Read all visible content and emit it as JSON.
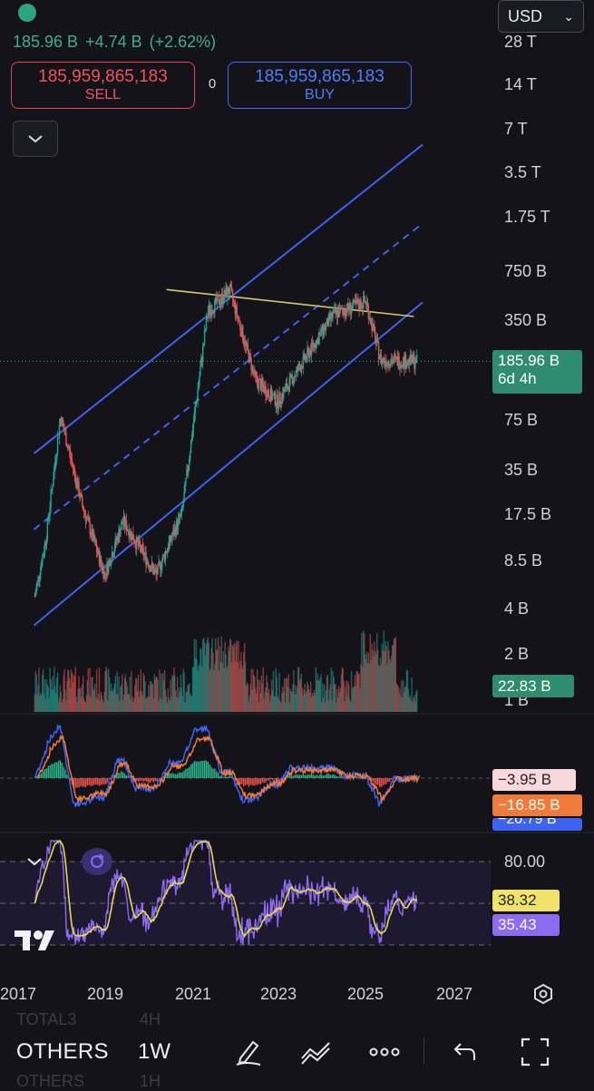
{
  "header": {
    "currency": "USD",
    "last_price": "185.96 B",
    "change": "+4.74 B",
    "change_pct": "(+2.62%)",
    "sell_price": "185,959,865,183",
    "sell_label": "SELL",
    "spread": "0",
    "buy_price": "185,959,865,183",
    "buy_label": "BUY"
  },
  "colors": {
    "background": "#131319",
    "up_candle": "#26a69a",
    "down_candle": "#ef5350",
    "channel": "#3d63f0",
    "resistance": "#d9c66a",
    "rsi_line": "#8b6cf0",
    "rsi_ma": "#e9d94a",
    "macd_line": "#3d63f0",
    "signal_line": "#f07a3a"
  },
  "price_axis": {
    "ticks": [
      "28 T",
      "14 T",
      "7 T",
      "3.5 T",
      "1.75 T",
      "750 B",
      "350 B",
      "75 B",
      "35 B",
      "17.5 B",
      "8.5 B",
      "4 B",
      "2 B",
      "1 B"
    ],
    "current_price_label": "185.96 B",
    "countdown": "6d 4h",
    "volume_label": "22.83 B"
  },
  "macd": {
    "histogram_label": "−3.95 B",
    "signal_label": "−16.85 B",
    "macd_label": "−20.79 B"
  },
  "rsi": {
    "upper_band": "80.00",
    "ma_label": "38.32",
    "rsi_label": "35.43"
  },
  "time_axis": [
    "2017",
    "2019",
    "2021",
    "2023",
    "2025",
    "2027"
  ],
  "toolbar": {
    "symbol": "OTHERS",
    "timeframe": "1W",
    "ghost_symbol_above": "TOTAL3",
    "ghost_tf_above": "4H",
    "ghost_symbol_below": "OTHERS",
    "ghost_tf_below": "1H"
  },
  "chart_data": {
    "type": "candlestick",
    "title": "",
    "scale": "log",
    "ylim": [
      "1 B",
      "28 T"
    ],
    "x": [
      "2017",
      "2019",
      "2021",
      "2023",
      "2025",
      "2027"
    ],
    "series": [
      {
        "values": [
          {
            "date": "2017-06",
            "close_B": 5
          },
          {
            "date": "2017-09",
            "close_B": 12
          },
          {
            "date": "2018-01",
            "close_B": 80
          },
          {
            "date": "2018-07",
            "close_B": 20
          },
          {
            "date": "2019-01",
            "close_B": 7
          },
          {
            "date": "2019-06",
            "close_B": 16
          },
          {
            "date": "2020-03",
            "close_B": 7
          },
          {
            "date": "2020-10",
            "close_B": 18
          },
          {
            "date": "2021-05",
            "close_B": 400
          },
          {
            "date": "2021-11",
            "close_B": 560
          },
          {
            "date": "2022-06",
            "close_B": 140
          },
          {
            "date": "2022-12",
            "close_B": 100
          },
          {
            "date": "2024-03",
            "close_B": 380
          },
          {
            "date": "2024-12",
            "close_B": 470
          },
          {
            "date": "2025-04",
            "close_B": 190
          },
          {
            "date": "2026-02",
            "close_B": 185.96
          }
        ]
      }
    ],
    "last_close": "185.96 B",
    "volume_last": "22.83 B",
    "indicators": {
      "macd": {
        "histogram": "−3.95 B",
        "signal": "−16.85 B",
        "macd": "−20.79 B"
      },
      "rsi": {
        "upper": 80,
        "rsi": 35.43,
        "ma": 38.32
      }
    },
    "grid": false
  }
}
